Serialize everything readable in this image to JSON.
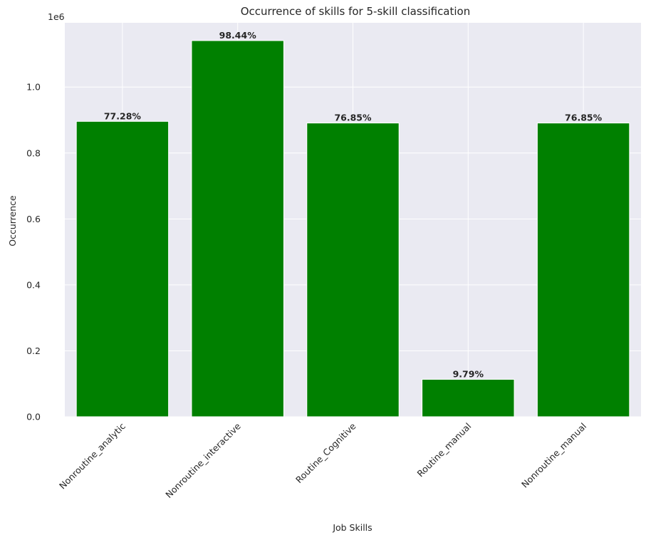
{
  "chart_data": {
    "type": "bar",
    "title": "Occurrence of skills for 5-skill classification",
    "xlabel": "Job Skills",
    "ylabel": "Occurrence",
    "y_offset_label": "1e6",
    "categories": [
      "Nonroutine_analytic",
      "Nonroutine_interactive",
      "Routine_Cognitive",
      "Routine_manual",
      "Nonroutine_manual"
    ],
    "values": [
      896000,
      1141000,
      891000,
      113500,
      891000
    ],
    "data_labels": [
      "77.28%",
      "98.44%",
      "76.85%",
      "9.79%",
      "76.85%"
    ],
    "ylim": [
      0,
      1195000
    ],
    "yticks": [
      0,
      200000,
      400000,
      600000,
      800000,
      1000000
    ],
    "ytick_labels": [
      "0.0",
      "0.2",
      "0.4",
      "0.6",
      "0.8",
      "1.0"
    ],
    "grid": true,
    "colors": {
      "bar": "#008000",
      "background": "#eaeaf2",
      "grid": "#ffffff"
    }
  }
}
